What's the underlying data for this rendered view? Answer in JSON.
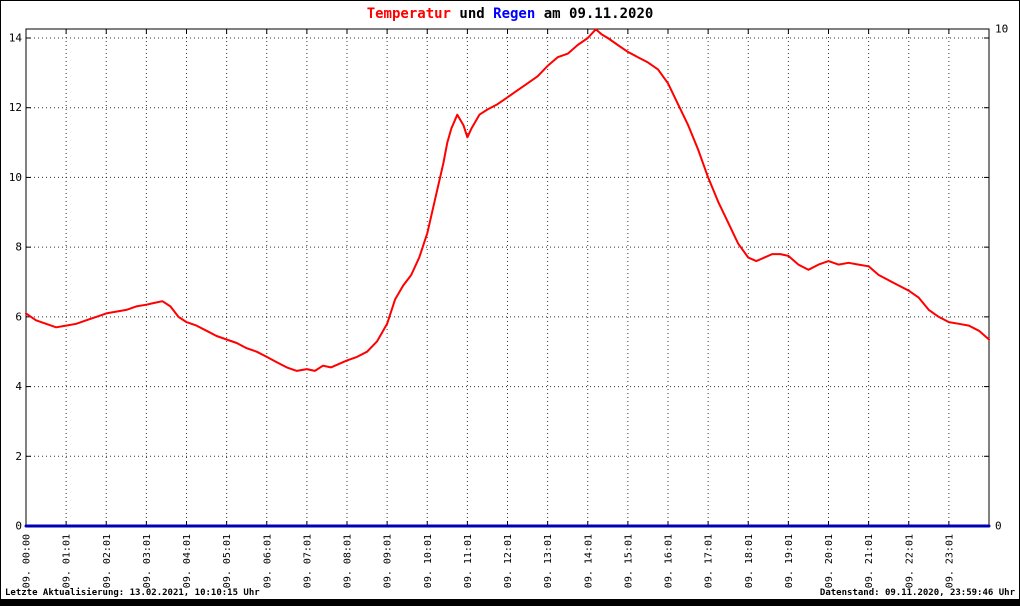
{
  "title": {
    "part1": "Temperatur",
    "part2": " und ",
    "part3": "Regen",
    "part4": " am 09.11.2020"
  },
  "footer": {
    "left": "Letzte Aktualisierung: 13.02.2021, 10:10:15 Uhr",
    "right": "Datenstand: 09.11.2020, 23:59:46 Uhr"
  },
  "colors": {
    "temperature_line": "#ff0000",
    "rain_line": "#0000b4",
    "title_rain": "#0000ff",
    "grid": "#000000",
    "background": "#ffffff"
  },
  "chart_data": {
    "type": "line",
    "title": "Temperatur und Regen am 09.11.2020",
    "grid": true,
    "x_labels": [
      "09. 00:00",
      "09. 01:01",
      "09. 02:01",
      "09. 03:01",
      "09. 04:01",
      "09. 05:01",
      "09. 06:01",
      "09. 07:01",
      "09. 08:01",
      "09. 09:01",
      "09. 10:01",
      "09. 11:01",
      "09. 12:01",
      "09. 13:01",
      "09. 14:01",
      "09. 15:01",
      "09. 16:01",
      "09. 17:01",
      "09. 18:01",
      "09. 19:01",
      "09. 20:01",
      "09. 21:01",
      "09. 22:01",
      "09. 23:01"
    ],
    "left_axis": {
      "ticks": [
        0,
        2,
        4,
        6,
        8,
        10,
        12,
        14
      ],
      "range": [
        0,
        14.3
      ]
    },
    "right_axis": {
      "ticks": [
        0,
        10
      ],
      "range": [
        0,
        10
      ]
    },
    "x_range_hours": [
      0,
      24
    ],
    "series": [
      {
        "name": "Temperatur",
        "axis": "left",
        "color": "#ff0000",
        "width": 2,
        "x": [
          0,
          0.25,
          0.5,
          0.75,
          1,
          1.25,
          1.5,
          1.75,
          2,
          2.25,
          2.5,
          2.75,
          3,
          3.2,
          3.4,
          3.6,
          3.8,
          4,
          4.25,
          4.5,
          4.75,
          5,
          5.25,
          5.5,
          5.75,
          6,
          6.25,
          6.5,
          6.75,
          7,
          7.2,
          7.4,
          7.6,
          7.8,
          8,
          8.25,
          8.5,
          8.75,
          9,
          9.2,
          9.4,
          9.6,
          9.8,
          10,
          10.2,
          10.4,
          10.5,
          10.6,
          10.75,
          10.9,
          11,
          11.1,
          11.3,
          11.5,
          11.75,
          12,
          12.25,
          12.5,
          12.75,
          13,
          13.25,
          13.5,
          13.75,
          14,
          14.2,
          14.35,
          14.5,
          14.75,
          15,
          15.25,
          15.5,
          15.75,
          16,
          16.25,
          16.5,
          16.75,
          17,
          17.25,
          17.5,
          17.75,
          18,
          18.2,
          18.4,
          18.6,
          18.8,
          19,
          19.25,
          19.5,
          19.75,
          20,
          20.25,
          20.5,
          20.75,
          21,
          21.25,
          21.5,
          21.75,
          22,
          22.25,
          22.5,
          22.75,
          23,
          23.25,
          23.5,
          23.75,
          24
        ],
        "values": [
          6.1,
          5.9,
          5.8,
          5.7,
          5.75,
          5.8,
          5.9,
          6.0,
          6.1,
          6.15,
          6.2,
          6.3,
          6.35,
          6.4,
          6.45,
          6.3,
          6.0,
          5.85,
          5.75,
          5.6,
          5.45,
          5.35,
          5.25,
          5.1,
          5.0,
          4.85,
          4.7,
          4.55,
          4.45,
          4.5,
          4.45,
          4.6,
          4.55,
          4.65,
          4.75,
          4.85,
          5.0,
          5.3,
          5.8,
          6.5,
          6.9,
          7.2,
          7.7,
          8.4,
          9.4,
          10.4,
          11.0,
          11.4,
          11.8,
          11.5,
          11.15,
          11.4,
          11.8,
          11.95,
          12.1,
          12.3,
          12.5,
          12.7,
          12.9,
          13.2,
          13.45,
          13.55,
          13.8,
          14.0,
          14.25,
          14.1,
          14.0,
          13.8,
          13.6,
          13.45,
          13.3,
          13.1,
          12.7,
          12.1,
          11.5,
          10.8,
          10.0,
          9.3,
          8.7,
          8.1,
          7.7,
          7.6,
          7.7,
          7.8,
          7.8,
          7.75,
          7.5,
          7.35,
          7.5,
          7.6,
          7.5,
          7.55,
          7.5,
          7.45,
          7.2,
          7.05,
          6.9,
          6.75,
          6.55,
          6.2,
          6.0,
          5.85,
          5.8,
          5.75,
          5.6,
          5.35
        ]
      },
      {
        "name": "Regen",
        "axis": "right",
        "color": "#0000b4",
        "width": 3,
        "x": [
          0,
          24
        ],
        "values": [
          0,
          0
        ]
      }
    ]
  }
}
